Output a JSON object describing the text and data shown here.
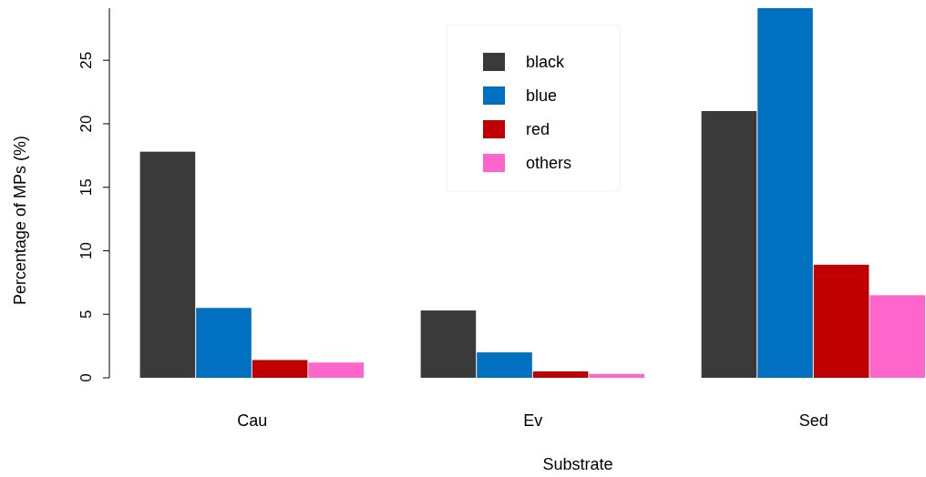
{
  "chart_data": {
    "type": "bar",
    "xlabel": "Substrate",
    "ylabel": "Percentage of MPs (%)",
    "categories": [
      "Cau",
      "Ev",
      "Sed"
    ],
    "series": [
      {
        "name": "black",
        "color": "#3a3a3a",
        "values": [
          17.8,
          5.3,
          21.0
        ]
      },
      {
        "name": "blue",
        "color": "#0070c0",
        "values": [
          5.5,
          2.0,
          29.1
        ]
      },
      {
        "name": "red",
        "color": "#c00000",
        "values": [
          1.4,
          0.5,
          8.9
        ]
      },
      {
        "name": "others",
        "color": "#ff66cc",
        "values": [
          1.2,
          0.3,
          6.5
        ]
      }
    ],
    "ylim": [
      0,
      29.1
    ],
    "yticks": [
      0,
      5,
      10,
      15,
      20,
      25
    ],
    "legend": "top",
    "grid": false
  }
}
